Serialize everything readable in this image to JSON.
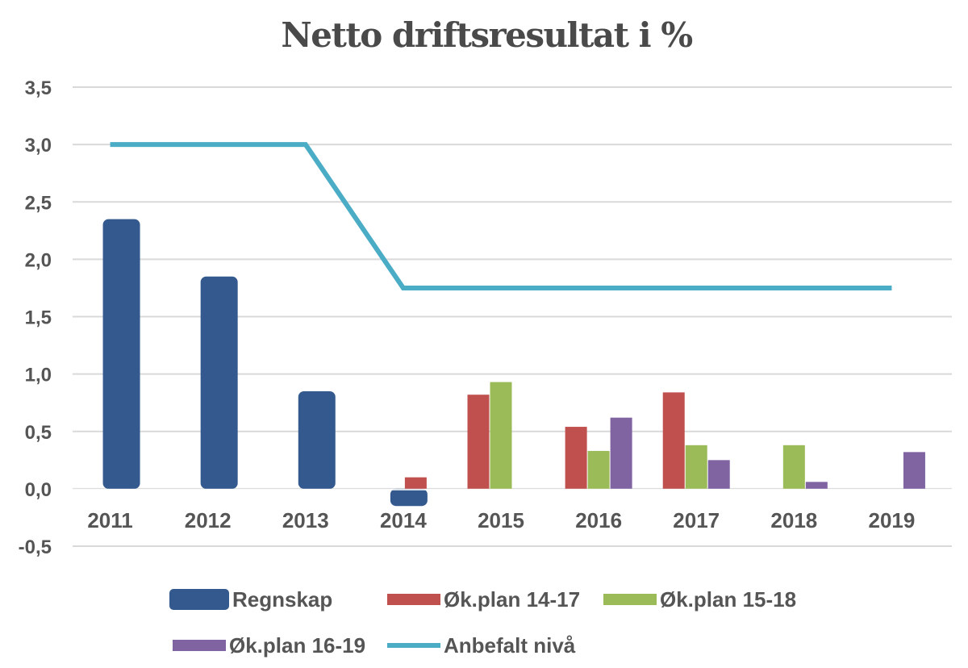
{
  "chart_data": {
    "type": "bar",
    "title": "Netto driftsresultat i %",
    "categories": [
      "2011",
      "2012",
      "2013",
      "2014",
      "2015",
      "2016",
      "2017",
      "2018",
      "2019"
    ],
    "ylim": [
      -0.5,
      3.5
    ],
    "yticks": [
      "3,5",
      "3,0",
      "2,5",
      "2,0",
      "1,5",
      "1,0",
      "0,5",
      "0,0",
      "-0,5"
    ],
    "ytick_values": [
      3.5,
      3.0,
      2.5,
      2.0,
      1.5,
      1.0,
      0.5,
      0.0,
      -0.5
    ],
    "grid": true,
    "legend_position": "bottom",
    "series": [
      {
        "name": "Regnskap",
        "color": "#34598e",
        "kind": "bar",
        "values": [
          2.35,
          1.85,
          0.85,
          -0.15,
          null,
          null,
          null,
          null,
          null
        ]
      },
      {
        "name": "Øk.plan 14-17",
        "color": "#c0504d",
        "kind": "bar",
        "values": [
          null,
          null,
          null,
          0.1,
          0.82,
          0.54,
          0.84,
          null,
          null
        ]
      },
      {
        "name": "Øk.plan 15-18",
        "color": "#9bbb59",
        "kind": "bar",
        "values": [
          null,
          null,
          null,
          null,
          0.93,
          0.33,
          0.38,
          0.38,
          null
        ]
      },
      {
        "name": "Øk.plan 16-19",
        "color": "#8064a2",
        "kind": "bar",
        "values": [
          null,
          null,
          null,
          null,
          null,
          0.62,
          0.25,
          0.06,
          0.32
        ]
      },
      {
        "name": "Anbefalt nivå",
        "color": "#4bacc6",
        "kind": "line",
        "values": [
          3.0,
          3.0,
          3.0,
          1.75,
          1.75,
          1.75,
          1.75,
          1.75,
          1.75
        ]
      }
    ]
  }
}
